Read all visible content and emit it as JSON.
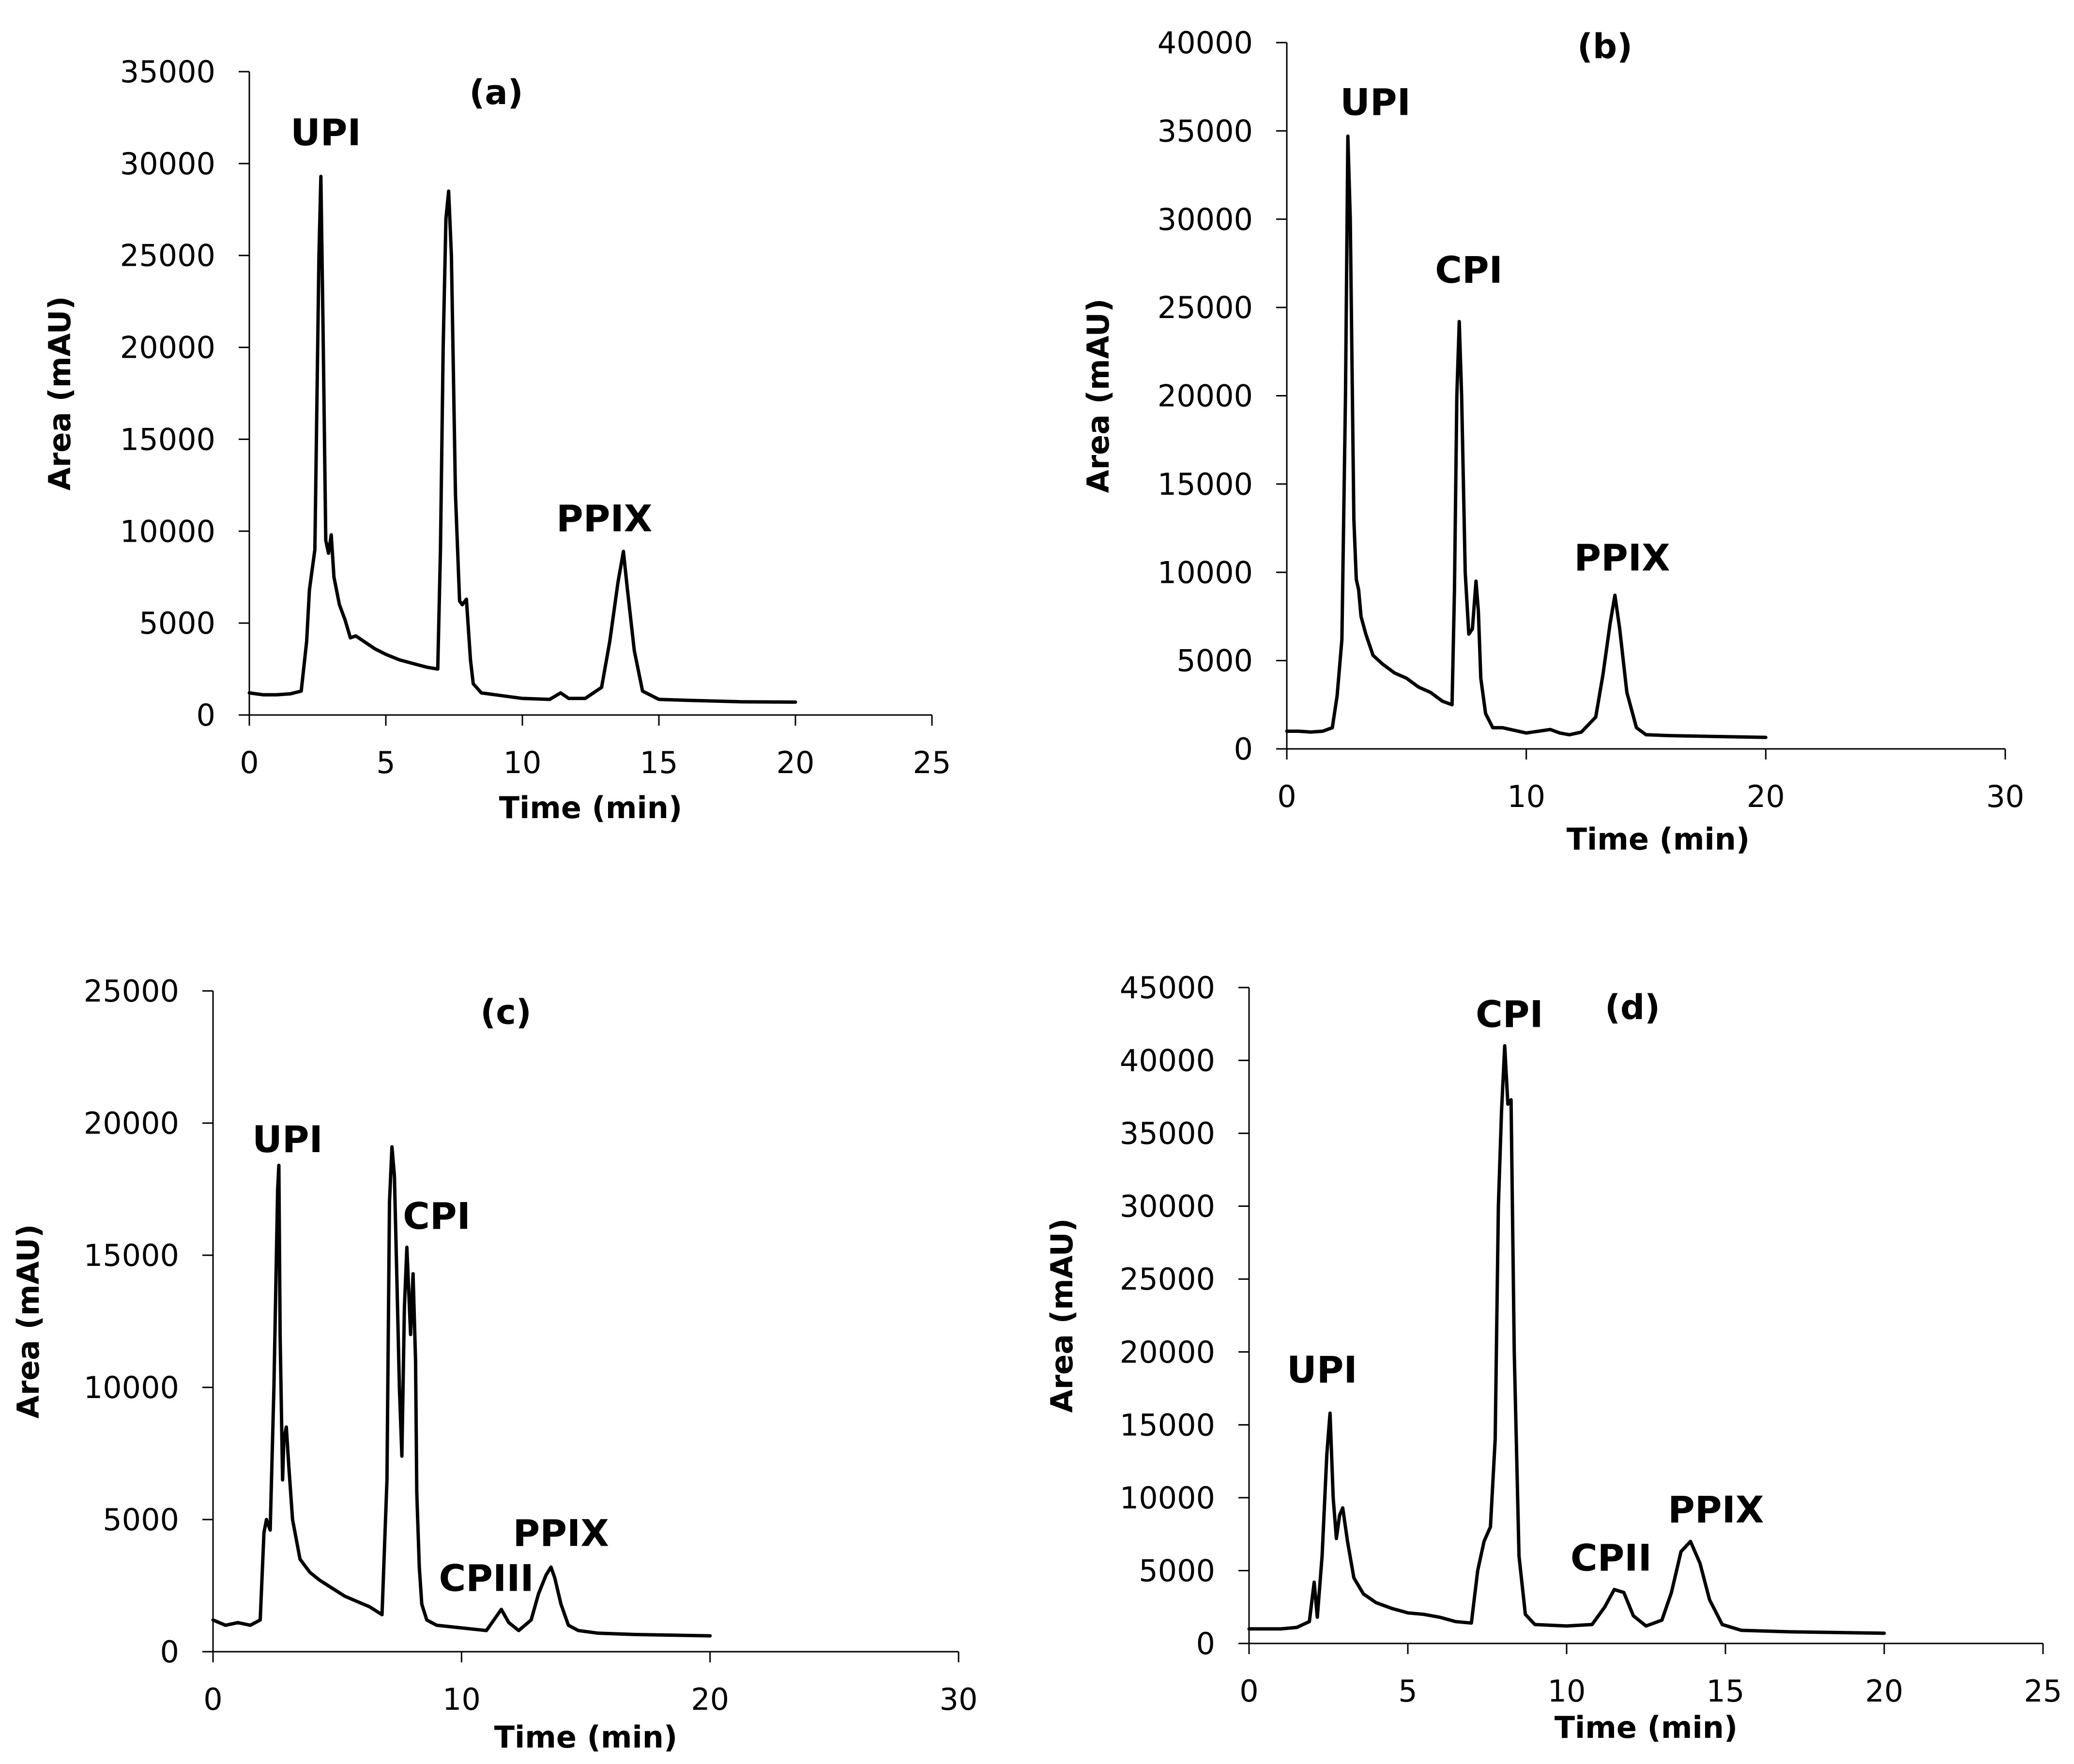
{
  "chart_data": [
    {
      "type": "line",
      "panel": "a",
      "title": "(a)",
      "xlabel": "Time (min)",
      "ylabel": "Area (mAU)",
      "xlim": [
        0,
        25
      ],
      "ylim": [
        0,
        35000
      ],
      "xticks": [
        0,
        5,
        10,
        15,
        20,
        25
      ],
      "yticks": [
        0,
        5000,
        10000,
        15000,
        20000,
        25000,
        30000,
        35000
      ],
      "x": [
        0,
        0.5,
        1.0,
        1.5,
        1.9,
        2.1,
        2.2,
        2.4,
        2.55,
        2.62,
        2.7,
        2.8,
        2.9,
        3.0,
        3.1,
        3.3,
        3.5,
        3.7,
        3.9,
        4.2,
        4.6,
        5.0,
        5.5,
        6.0,
        6.5,
        6.9,
        7.0,
        7.1,
        7.2,
        7.3,
        7.4,
        7.55,
        7.7,
        7.8,
        7.95,
        8.1,
        8.2,
        8.5,
        9.0,
        10.0,
        11.0,
        11.4,
        11.7,
        12.3,
        12.9,
        13.2,
        13.5,
        13.7,
        13.85,
        14.1,
        14.4,
        15.0,
        16.0,
        18.0,
        20.0
      ],
      "y": [
        1200,
        1100,
        1100,
        1150,
        1300,
        4000,
        6800,
        9000,
        25000,
        29300,
        21000,
        9500,
        8800,
        9800,
        7500,
        6000,
        5200,
        4200,
        4300,
        4000,
        3600,
        3300,
        3000,
        2800,
        2600,
        2500,
        9000,
        20000,
        27000,
        28500,
        25000,
        12000,
        6200,
        6000,
        6300,
        3000,
        1700,
        1200,
        1100,
        900,
        850,
        1200,
        900,
        900,
        1500,
        4000,
        7200,
        8900,
        6800,
        3500,
        1300,
        850,
        800,
        720,
        700
      ],
      "peak_labels": [
        {
          "text": "UPI",
          "x": 2.8,
          "y": 31000
        },
        {
          "text": "PPIX",
          "x": 13.0,
          "y": 10000
        }
      ]
    },
    {
      "type": "line",
      "panel": "b",
      "title": "(b)",
      "xlabel": "Time (min)",
      "ylabel": "Area (mAU)",
      "xlim": [
        0,
        30
      ],
      "ylim": [
        0,
        40000
      ],
      "xticks": [
        0,
        10,
        20,
        30
      ],
      "yticks": [
        0,
        5000,
        10000,
        15000,
        20000,
        25000,
        30000,
        35000,
        40000
      ],
      "x": [
        0,
        0.5,
        1.0,
        1.5,
        1.9,
        2.1,
        2.3,
        2.45,
        2.55,
        2.65,
        2.8,
        2.9,
        3.0,
        3.1,
        3.3,
        3.6,
        4.0,
        4.5,
        5.0,
        5.5,
        6.0,
        6.5,
        6.9,
        7.0,
        7.1,
        7.2,
        7.3,
        7.45,
        7.6,
        7.75,
        7.9,
        8.0,
        8.1,
        8.3,
        8.6,
        9.0,
        10.0,
        11.0,
        11.4,
        11.8,
        12.3,
        12.9,
        13.2,
        13.5,
        13.7,
        13.9,
        14.2,
        14.6,
        15.0,
        16.0,
        18.0,
        20.0
      ],
      "y": [
        1000,
        1000,
        950,
        1000,
        1200,
        3000,
        6200,
        20000,
        34700,
        30000,
        13000,
        9600,
        9000,
        7500,
        6500,
        5300,
        4800,
        4300,
        4000,
        3500,
        3200,
        2700,
        2500,
        9000,
        20000,
        24200,
        20000,
        10000,
        6500,
        6800,
        9500,
        7800,
        4000,
        2000,
        1200,
        1200,
        900,
        1100,
        900,
        800,
        950,
        1800,
        4200,
        7100,
        8700,
        6800,
        3200,
        1200,
        800,
        750,
        700,
        650
      ],
      "peak_labels": [
        {
          "text": "UPI",
          "x": 3.7,
          "y": 35900
        },
        {
          "text": "CPI",
          "x": 7.6,
          "y": 26400
        },
        {
          "text": "PPIX",
          "x": 14.0,
          "y": 10100
        }
      ]
    },
    {
      "type": "line",
      "panel": "c",
      "title": "(c)",
      "xlabel": "Time (min)",
      "ylabel": "Area (mAU)",
      "xlim": [
        0,
        30
      ],
      "ylim": [
        0,
        25000
      ],
      "xticks": [
        0,
        10,
        20,
        30
      ],
      "yticks": [
        0,
        5000,
        10000,
        15000,
        20000,
        25000
      ],
      "x": [
        0,
        0.5,
        1.0,
        1.5,
        1.9,
        2.05,
        2.15,
        2.3,
        2.45,
        2.6,
        2.65,
        2.7,
        2.8,
        2.85,
        2.95,
        3.05,
        3.2,
        3.5,
        3.9,
        4.3,
        4.8,
        5.3,
        5.8,
        6.3,
        6.8,
        7.0,
        7.1,
        7.2,
        7.3,
        7.4,
        7.5,
        7.6,
        7.7,
        7.8,
        7.95,
        8.05,
        8.15,
        8.2,
        8.3,
        8.4,
        8.6,
        9.0,
        10.0,
        11.0,
        11.3,
        11.6,
        11.9,
        12.3,
        12.8,
        13.1,
        13.4,
        13.6,
        13.75,
        14.0,
        14.3,
        14.7,
        15.5,
        17.0,
        20.0
      ],
      "y": [
        1200,
        1000,
        1100,
        1000,
        1200,
        4500,
        5000,
        4600,
        10000,
        17500,
        18400,
        12000,
        6500,
        8000,
        8500,
        7000,
        5000,
        3500,
        3000,
        2700,
        2400,
        2100,
        1900,
        1700,
        1400,
        6500,
        17000,
        19100,
        18000,
        14000,
        10000,
        7400,
        13000,
        15300,
        12000,
        14300,
        11000,
        6000,
        3200,
        1800,
        1200,
        1000,
        900,
        800,
        1200,
        1600,
        1100,
        800,
        1200,
        2200,
        2900,
        3200,
        2800,
        1800,
        1000,
        800,
        700,
        650,
        600
      ],
      "peak_labels": [
        {
          "text": "UPI",
          "x": 3.0,
          "y": 18900
        },
        {
          "text": "CPI",
          "x": 9.0,
          "y": 16000
        },
        {
          "text": "CPIII",
          "x": 11.0,
          "y": 2300
        },
        {
          "text": "PPIX",
          "x": 14.0,
          "y": 4000
        }
      ]
    },
    {
      "type": "line",
      "panel": "d",
      "title": "(d)",
      "xlabel": "Time (min)",
      "ylabel": "Area (mAU)",
      "xlim": [
        0,
        25
      ],
      "ylim": [
        0,
        45000
      ],
      "xticks": [
        0,
        5,
        10,
        15,
        20,
        25
      ],
      "yticks": [
        0,
        5000,
        10000,
        15000,
        20000,
        25000,
        30000,
        35000,
        40000,
        45000
      ],
      "x": [
        0,
        0.5,
        1.0,
        1.5,
        1.9,
        2.05,
        2.15,
        2.3,
        2.45,
        2.55,
        2.65,
        2.75,
        2.85,
        2.95,
        3.1,
        3.3,
        3.6,
        4.0,
        4.5,
        5.0,
        5.5,
        6.0,
        6.5,
        7.0,
        7.2,
        7.4,
        7.6,
        7.75,
        7.85,
        7.95,
        8.05,
        8.15,
        8.25,
        8.35,
        8.5,
        8.7,
        9.0,
        10.0,
        10.8,
        11.2,
        11.5,
        11.8,
        12.1,
        12.5,
        13.0,
        13.3,
        13.6,
        13.9,
        14.2,
        14.5,
        14.9,
        15.5,
        17.0,
        20.0
      ],
      "y": [
        1000,
        1000,
        1000,
        1100,
        1500,
        4200,
        1800,
        6000,
        13000,
        15800,
        10000,
        7200,
        8800,
        9300,
        7000,
        4500,
        3400,
        2800,
        2400,
        2100,
        2000,
        1800,
        1500,
        1400,
        5000,
        7000,
        8000,
        14000,
        30000,
        36500,
        41000,
        37000,
        37300,
        20000,
        6000,
        2000,
        1300,
        1200,
        1300,
        2500,
        3700,
        3500,
        1900,
        1200,
        1600,
        3500,
        6300,
        7000,
        5500,
        3000,
        1300,
        900,
        800,
        700
      ],
      "peak_labels": [
        {
          "text": "UPI",
          "x": 2.3,
          "y": 17900
        },
        {
          "text": "CPI",
          "x": 8.2,
          "y": 42300
        },
        {
          "text": "CPII",
          "x": 11.4,
          "y": 5000
        },
        {
          "text": "PPIX",
          "x": 14.7,
          "y": 8300
        }
      ]
    }
  ]
}
